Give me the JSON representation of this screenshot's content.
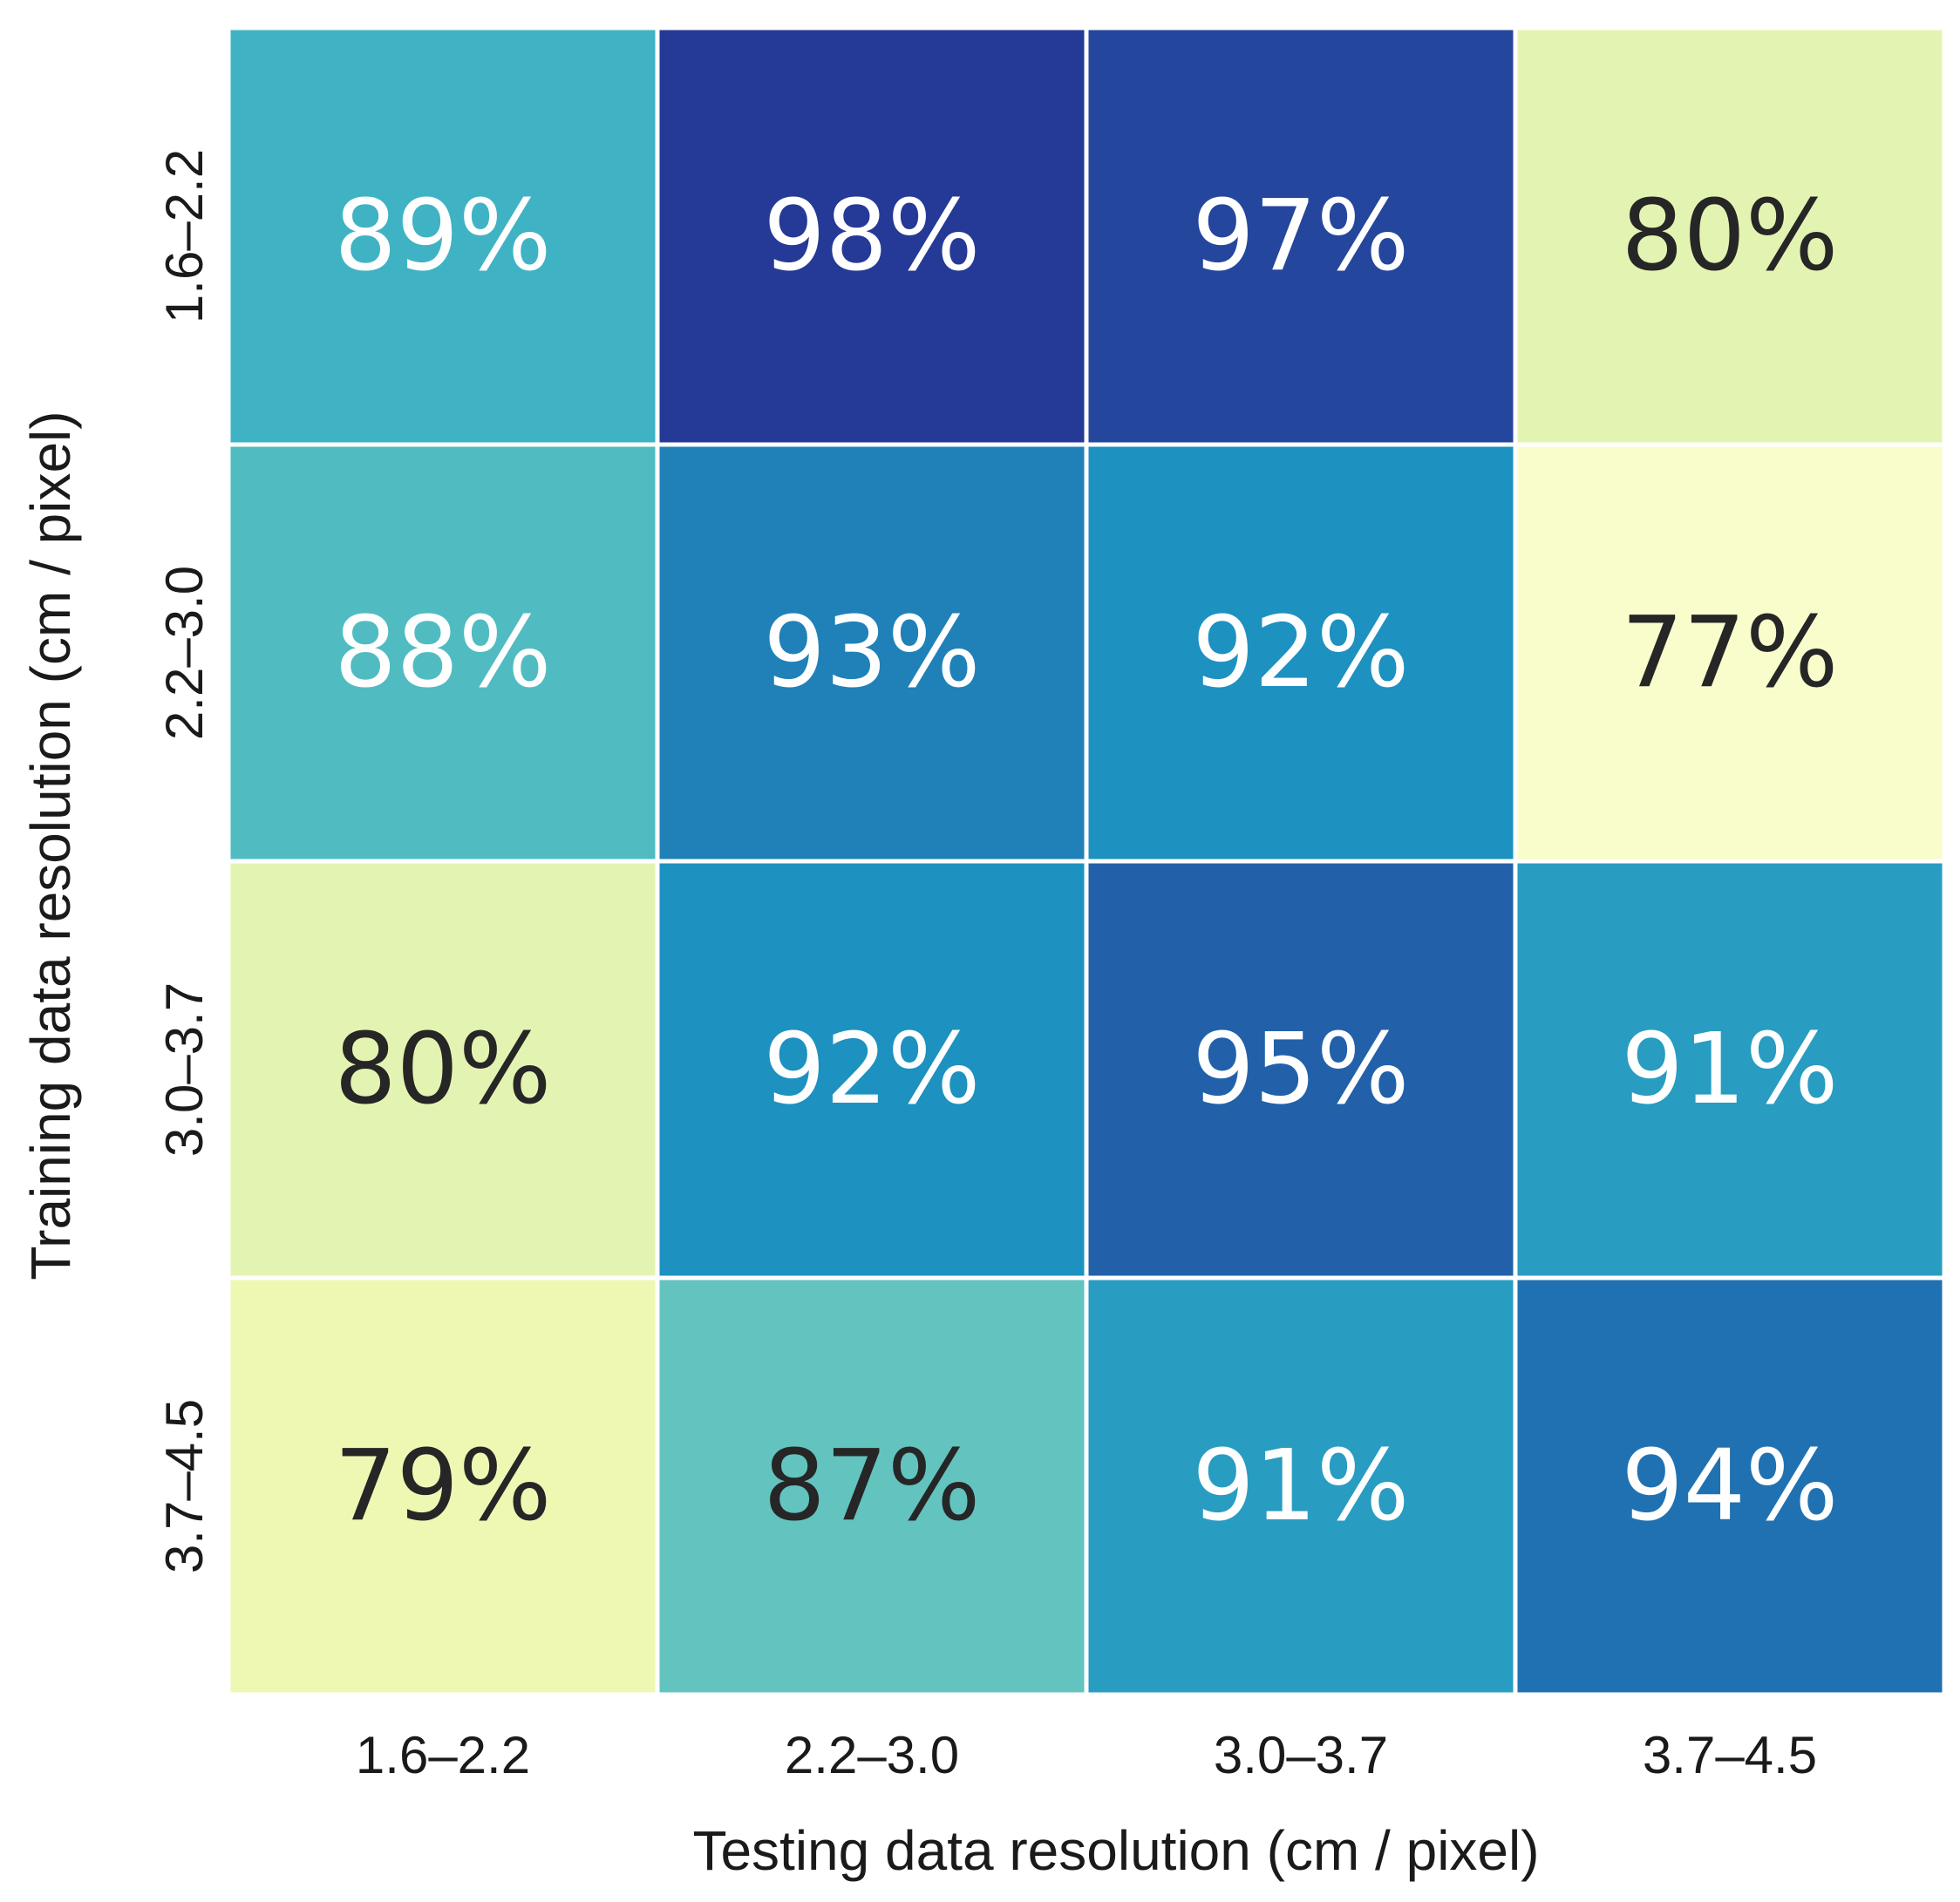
{
  "chart_data": {
    "type": "heatmap",
    "title": "",
    "xlabel": "Testing data resolution (cm / pixel)",
    "ylabel": "Training data resolution (cm / pixel)",
    "x_categories": [
      "1.6–2.2",
      "2.2–3.0",
      "3.0–3.7",
      "3.7–4.5"
    ],
    "y_categories": [
      "1.6–2.2",
      "2.2–3.0",
      "3.0–3.7",
      "3.7–4.5"
    ],
    "values": [
      [
        89,
        98,
        97,
        80
      ],
      [
        88,
        93,
        92,
        77
      ],
      [
        80,
        92,
        95,
        91
      ],
      [
        79,
        87,
        91,
        94
      ]
    ],
    "value_suffix": "%",
    "colormap": "YlGnBu",
    "color_range": [
      77,
      98
    ],
    "dark_text_color": "#262626",
    "light_text_color": "#ffffff",
    "grid_line_color": "#ffffff"
  }
}
